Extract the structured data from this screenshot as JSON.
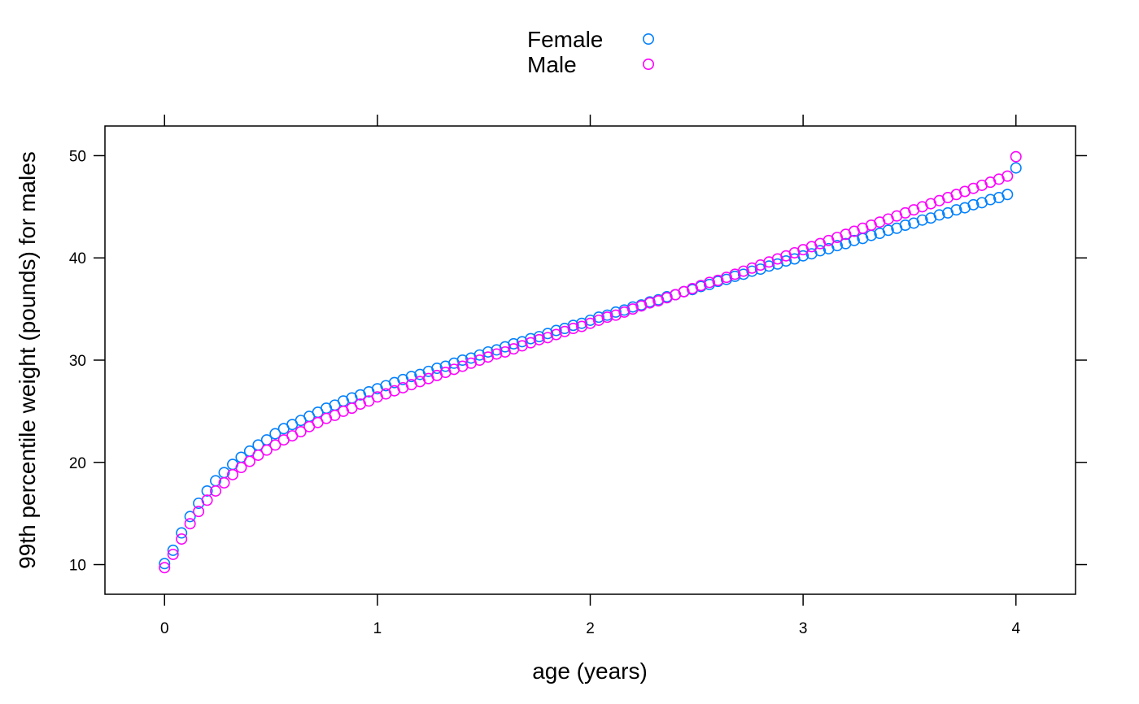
{
  "chart_data": {
    "type": "scatter",
    "title": "",
    "xlabel": "age (years)",
    "ylabel": "99th percentile weight (pounds) for males",
    "xlim": [
      -0.28,
      4.28
    ],
    "ylim": [
      7.1,
      52.9
    ],
    "x_ticks": [
      0,
      1,
      2,
      3,
      4
    ],
    "y_ticks": [
      10,
      20,
      30,
      40,
      50
    ],
    "grid": false,
    "legend_position": "top-center",
    "marker": "open-circle",
    "x": [
      0.0,
      0.04,
      0.08,
      0.12,
      0.16,
      0.2,
      0.24,
      0.28,
      0.32,
      0.36,
      0.4,
      0.44,
      0.48,
      0.52,
      0.56,
      0.6,
      0.64,
      0.68,
      0.72,
      0.76,
      0.8,
      0.84,
      0.88,
      0.92,
      0.96,
      1.0,
      1.04,
      1.08,
      1.12,
      1.16,
      1.2,
      1.24,
      1.28,
      1.32,
      1.36,
      1.4,
      1.44,
      1.48,
      1.52,
      1.56,
      1.6,
      1.64,
      1.68,
      1.72,
      1.76,
      1.8,
      1.84,
      1.88,
      1.92,
      1.96,
      2.0,
      2.04,
      2.08,
      2.12,
      2.16,
      2.2,
      2.24,
      2.28,
      2.32,
      2.36,
      2.4,
      2.44,
      2.48,
      2.52,
      2.56,
      2.6,
      2.64,
      2.68,
      2.72,
      2.76,
      2.8,
      2.84,
      2.88,
      2.92,
      2.96,
      3.0,
      3.04,
      3.08,
      3.12,
      3.16,
      3.2,
      3.24,
      3.28,
      3.32,
      3.36,
      3.4,
      3.44,
      3.48,
      3.52,
      3.56,
      3.6,
      3.64,
      3.68,
      3.72,
      3.76,
      3.8,
      3.84,
      3.88,
      3.92,
      3.96,
      4.0
    ],
    "series": [
      {
        "name": "Female",
        "color": "#0080ff",
        "values": [
          10.1,
          11.4,
          13.1,
          14.7,
          16.0,
          17.2,
          18.2,
          19.0,
          19.8,
          20.5,
          21.1,
          21.7,
          22.2,
          22.8,
          23.3,
          23.7,
          24.1,
          24.5,
          24.9,
          25.3,
          25.6,
          26.0,
          26.3,
          26.6,
          26.9,
          27.2,
          27.5,
          27.8,
          28.1,
          28.4,
          28.6,
          28.9,
          29.2,
          29.4,
          29.7,
          30.0,
          30.2,
          30.5,
          30.8,
          31.0,
          31.3,
          31.6,
          31.8,
          32.1,
          32.3,
          32.6,
          32.9,
          33.1,
          33.4,
          33.6,
          33.9,
          34.2,
          34.4,
          34.7,
          34.9,
          35.2,
          35.4,
          35.7,
          35.9,
          36.2,
          36.4,
          36.7,
          36.9,
          37.2,
          37.4,
          37.7,
          37.9,
          38.2,
          38.4,
          38.7,
          38.9,
          39.2,
          39.4,
          39.7,
          39.9,
          40.2,
          40.4,
          40.7,
          40.9,
          41.2,
          41.4,
          41.7,
          41.9,
          42.2,
          42.4,
          42.7,
          42.9,
          43.2,
          43.4,
          43.7,
          43.9,
          44.2,
          44.4,
          44.7,
          44.9,
          45.2,
          45.4,
          45.7,
          45.9,
          46.2,
          48.8
        ]
      },
      {
        "name": "Male",
        "color": "#ff00ff",
        "values": [
          9.7,
          11.0,
          12.5,
          14.0,
          15.2,
          16.3,
          17.2,
          18.0,
          18.8,
          19.5,
          20.1,
          20.7,
          21.2,
          21.7,
          22.2,
          22.6,
          23.0,
          23.5,
          23.9,
          24.3,
          24.6,
          25.0,
          25.3,
          25.7,
          26.0,
          26.4,
          26.7,
          27.0,
          27.3,
          27.6,
          27.9,
          28.2,
          28.5,
          28.8,
          29.1,
          29.4,
          29.7,
          30.0,
          30.3,
          30.6,
          30.8,
          31.1,
          31.4,
          31.7,
          32.0,
          32.2,
          32.5,
          32.8,
          33.1,
          33.3,
          33.6,
          33.9,
          34.2,
          34.4,
          34.7,
          35.0,
          35.3,
          35.6,
          35.8,
          36.1,
          36.4,
          36.7,
          37.0,
          37.3,
          37.6,
          37.8,
          38.1,
          38.4,
          38.7,
          39.0,
          39.3,
          39.6,
          39.9,
          40.2,
          40.5,
          40.8,
          41.1,
          41.4,
          41.7,
          42.0,
          42.3,
          42.6,
          42.9,
          43.2,
          43.5,
          43.8,
          44.1,
          44.4,
          44.7,
          45.0,
          45.3,
          45.6,
          45.9,
          46.2,
          46.5,
          46.8,
          47.1,
          47.4,
          47.7,
          48.0,
          49.9
        ]
      }
    ]
  }
}
